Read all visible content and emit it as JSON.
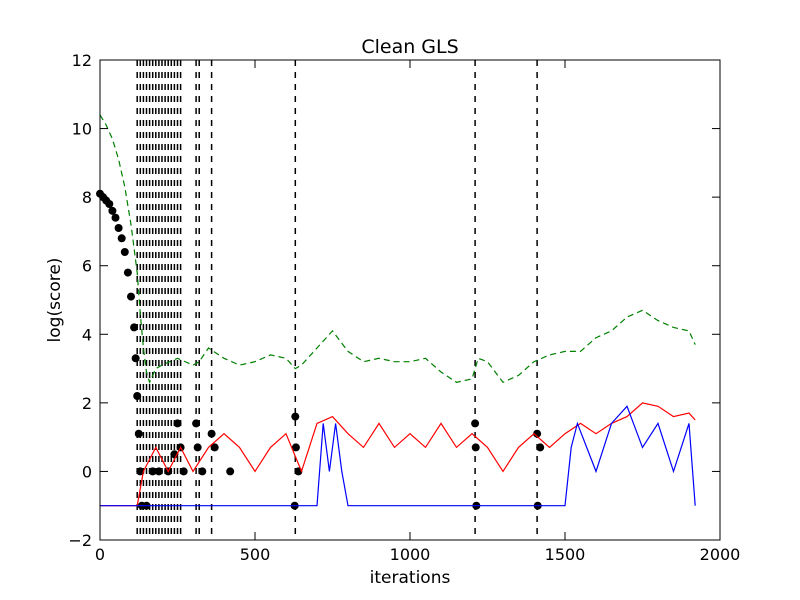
{
  "chart_data": {
    "type": "line",
    "title": "Clean GLS",
    "xlabel": "iterations",
    "ylabel": "log(score)",
    "xlim": [
      0,
      2000
    ],
    "ylim": [
      -2,
      12
    ],
    "x_ticks": [
      0,
      500,
      1000,
      1500,
      2000
    ],
    "y_ticks": [
      -2,
      0,
      2,
      4,
      6,
      8,
      10,
      12
    ],
    "grid": false,
    "legend": "none",
    "colors": {
      "green": "#008000",
      "red": "#ff0000",
      "blue": "#0000ff",
      "black": "#000000"
    },
    "vertical_lines_x": [
      120,
      130,
      140,
      150,
      160,
      170,
      180,
      190,
      200,
      210,
      220,
      230,
      240,
      250,
      260,
      310,
      320,
      360,
      630,
      1210,
      1410
    ],
    "series": [
      {
        "color": "green",
        "style": "dashed",
        "points": [
          [
            0,
            10.4
          ],
          [
            20,
            10.1
          ],
          [
            40,
            9.7
          ],
          [
            60,
            9.1
          ],
          [
            80,
            8.3
          ],
          [
            100,
            7.2
          ],
          [
            120,
            5.8
          ],
          [
            130,
            4.6
          ],
          [
            140,
            3.6
          ],
          [
            150,
            2.9
          ],
          [
            160,
            2.6
          ],
          [
            170,
            2.8
          ],
          [
            180,
            3.0
          ],
          [
            200,
            3.1
          ],
          [
            250,
            3.3
          ],
          [
            300,
            3.1
          ],
          [
            320,
            3.2
          ],
          [
            350,
            3.6
          ],
          [
            400,
            3.3
          ],
          [
            450,
            3.1
          ],
          [
            500,
            3.2
          ],
          [
            550,
            3.4
          ],
          [
            600,
            3.3
          ],
          [
            630,
            3.0
          ],
          [
            650,
            3.1
          ],
          [
            700,
            3.6
          ],
          [
            750,
            4.1
          ],
          [
            800,
            3.5
          ],
          [
            850,
            3.2
          ],
          [
            900,
            3.3
          ],
          [
            950,
            3.2
          ],
          [
            1000,
            3.2
          ],
          [
            1050,
            3.3
          ],
          [
            1100,
            2.9
          ],
          [
            1150,
            2.6
          ],
          [
            1200,
            2.7
          ],
          [
            1220,
            3.3
          ],
          [
            1250,
            3.2
          ],
          [
            1300,
            2.6
          ],
          [
            1350,
            2.8
          ],
          [
            1400,
            3.2
          ],
          [
            1450,
            3.4
          ],
          [
            1500,
            3.5
          ],
          [
            1550,
            3.5
          ],
          [
            1600,
            3.9
          ],
          [
            1650,
            4.1
          ],
          [
            1700,
            4.5
          ],
          [
            1750,
            4.7
          ],
          [
            1800,
            4.4
          ],
          [
            1850,
            4.2
          ],
          [
            1900,
            4.1
          ],
          [
            1920,
            3.7
          ]
        ]
      },
      {
        "color": "black",
        "style": "markers",
        "points": [
          [
            0,
            8.1
          ],
          [
            10,
            8.0
          ],
          [
            20,
            7.9
          ],
          [
            30,
            7.8
          ],
          [
            40,
            7.6
          ],
          [
            50,
            7.4
          ],
          [
            60,
            7.1
          ],
          [
            70,
            6.8
          ],
          [
            80,
            6.4
          ],
          [
            90,
            5.8
          ],
          [
            100,
            5.1
          ],
          [
            110,
            4.2
          ],
          [
            115,
            3.3
          ],
          [
            120,
            2.2
          ],
          [
            125,
            1.1
          ],
          [
            130,
            0.0
          ],
          [
            135,
            -1.0
          ],
          [
            150,
            -1.0
          ],
          [
            170,
            0.0
          ],
          [
            190,
            0.0
          ],
          [
            220,
            0.0
          ],
          [
            240,
            0.5
          ],
          [
            250,
            1.4
          ],
          [
            260,
            0.7
          ],
          [
            270,
            0.0
          ],
          [
            310,
            1.4
          ],
          [
            315,
            0.7
          ],
          [
            330,
            0.0
          ],
          [
            360,
            1.1
          ],
          [
            370,
            0.7
          ],
          [
            420,
            0.0
          ],
          [
            630,
            1.6
          ],
          [
            632,
            0.7
          ],
          [
            640,
            0.0
          ],
          [
            628,
            -1.0
          ],
          [
            1210,
            1.4
          ],
          [
            1212,
            0.7
          ],
          [
            1214,
            -1.0
          ],
          [
            1410,
            1.1
          ],
          [
            1420,
            0.7
          ],
          [
            1412,
            -1.0
          ]
        ]
      },
      {
        "color": "red",
        "style": "solid",
        "points": [
          [
            0,
            -1.0
          ],
          [
            120,
            -1.0
          ],
          [
            140,
            0.0
          ],
          [
            180,
            0.7
          ],
          [
            220,
            0.0
          ],
          [
            260,
            0.7
          ],
          [
            300,
            0.0
          ],
          [
            350,
            0.7
          ],
          [
            400,
            1.1
          ],
          [
            450,
            0.7
          ],
          [
            500,
            0.0
          ],
          [
            550,
            0.7
          ],
          [
            600,
            1.1
          ],
          [
            650,
            0.0
          ],
          [
            700,
            1.4
          ],
          [
            750,
            1.6
          ],
          [
            800,
            1.1
          ],
          [
            850,
            0.7
          ],
          [
            900,
            1.4
          ],
          [
            950,
            0.7
          ],
          [
            1000,
            1.1
          ],
          [
            1050,
            0.7
          ],
          [
            1100,
            1.4
          ],
          [
            1150,
            0.7
          ],
          [
            1200,
            1.1
          ],
          [
            1250,
            0.7
          ],
          [
            1300,
            0.0
          ],
          [
            1350,
            0.7
          ],
          [
            1400,
            1.1
          ],
          [
            1450,
            0.7
          ],
          [
            1500,
            1.1
          ],
          [
            1550,
            1.4
          ],
          [
            1600,
            1.1
          ],
          [
            1650,
            1.4
          ],
          [
            1700,
            1.6
          ],
          [
            1750,
            2.0
          ],
          [
            1800,
            1.9
          ],
          [
            1850,
            1.6
          ],
          [
            1900,
            1.7
          ],
          [
            1920,
            1.5
          ]
        ]
      },
      {
        "color": "blue",
        "style": "solid",
        "points": [
          [
            0,
            -1.0
          ],
          [
            700,
            -1.0
          ],
          [
            720,
            1.4
          ],
          [
            740,
            0.0
          ],
          [
            760,
            1.4
          ],
          [
            780,
            0.0
          ],
          [
            800,
            -1.0
          ],
          [
            1500,
            -1.0
          ],
          [
            1520,
            0.7
          ],
          [
            1540,
            1.4
          ],
          [
            1600,
            0.0
          ],
          [
            1650,
            1.4
          ],
          [
            1700,
            1.9
          ],
          [
            1750,
            0.7
          ],
          [
            1800,
            1.4
          ],
          [
            1850,
            0.0
          ],
          [
            1900,
            1.4
          ],
          [
            1920,
            -1.0
          ]
        ]
      }
    ]
  }
}
